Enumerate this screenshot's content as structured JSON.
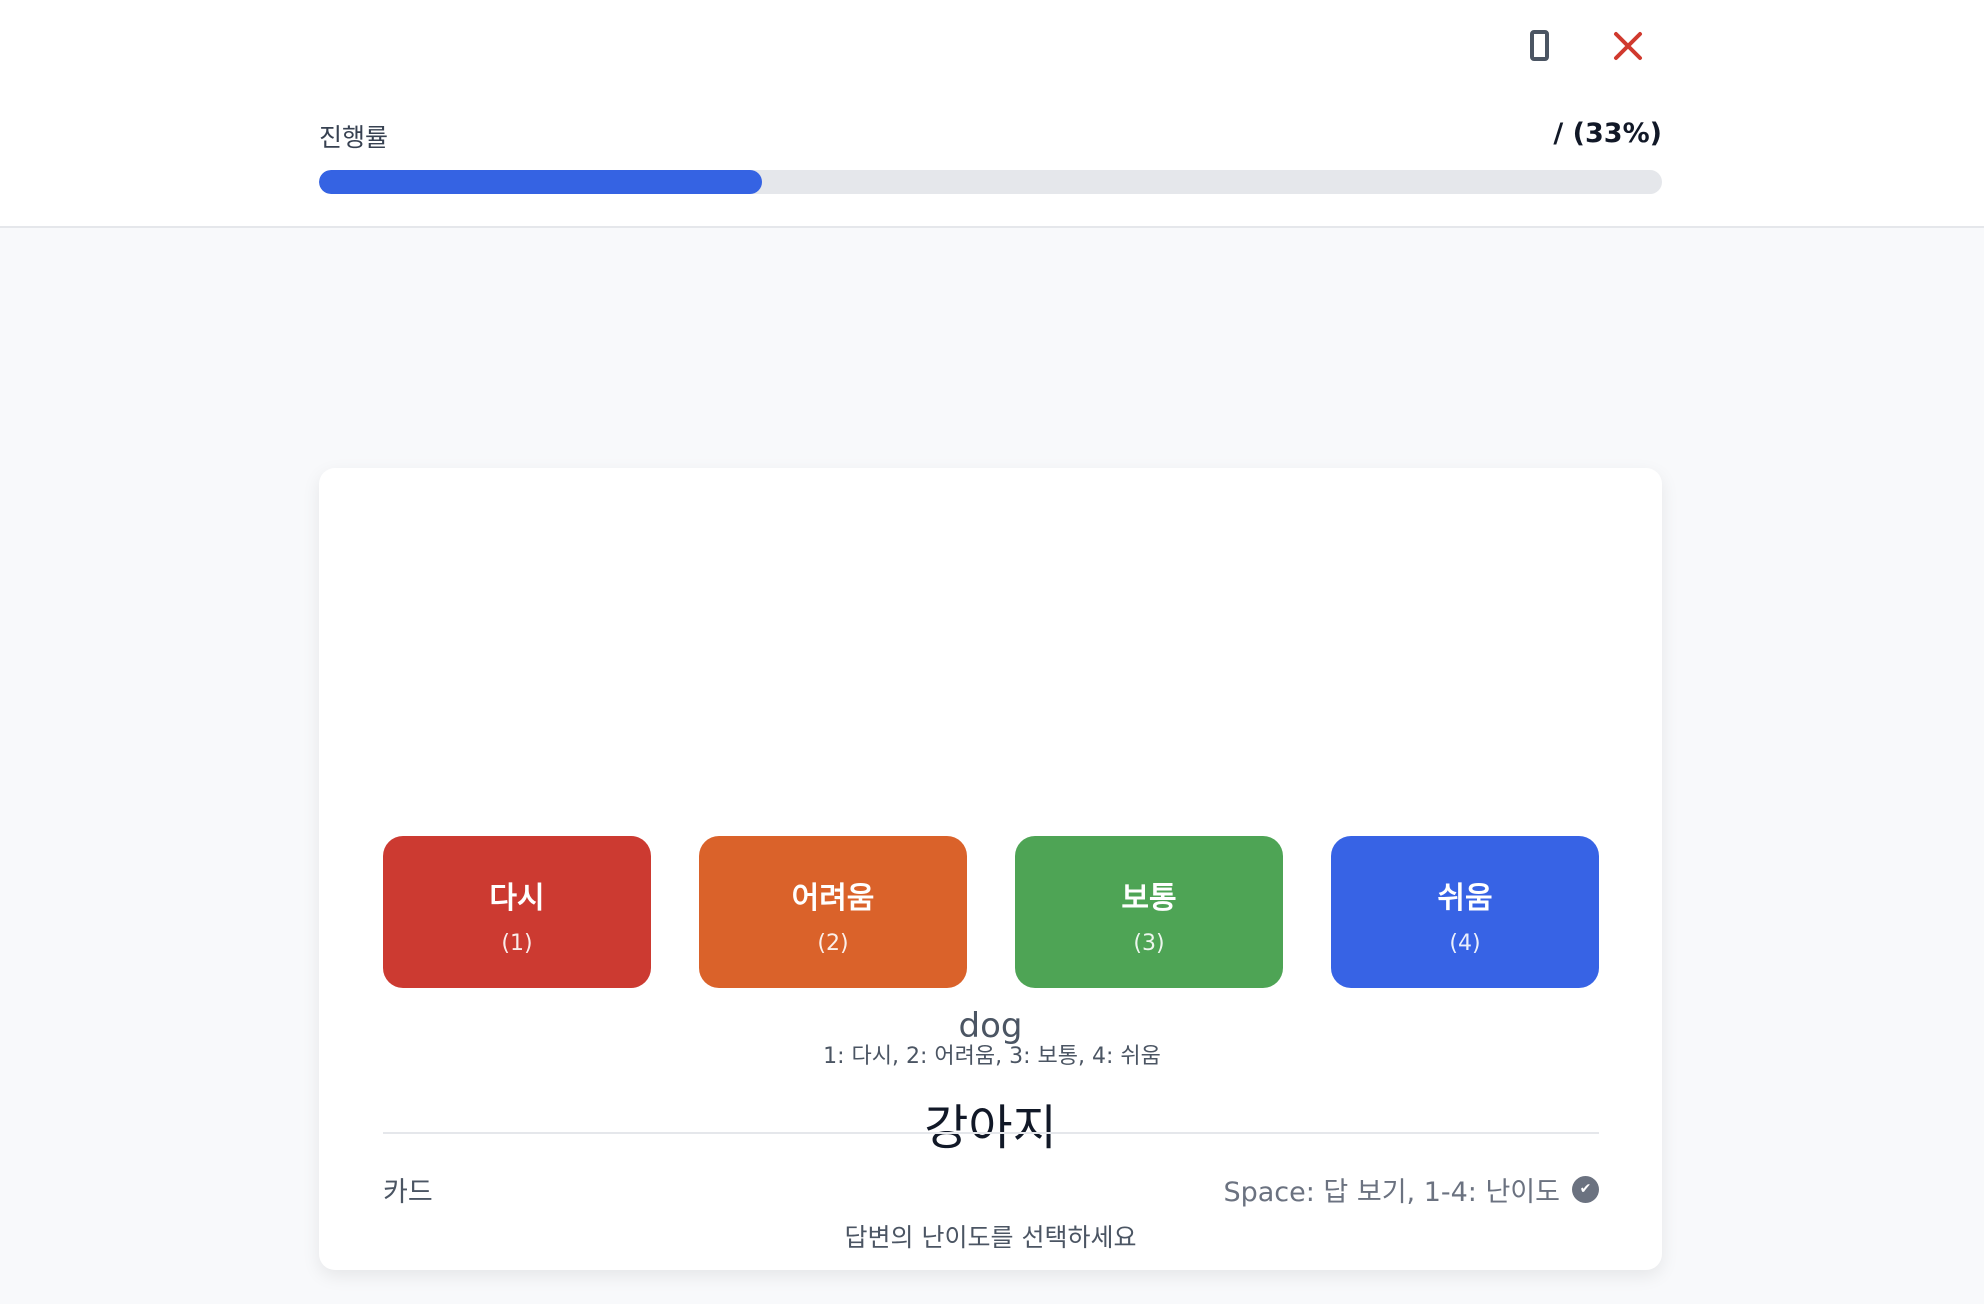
{
  "header": {
    "progress_label": "진행률",
    "progress_value": "/ (33%)",
    "progress_fraction": 0.33,
    "icons": [
      "mobile-icon",
      "close-icon"
    ]
  },
  "card": {
    "front": "dog",
    "back": "강아지",
    "prompt": "답변의 난이도를 선택하세요",
    "buttons": [
      {
        "label": "다시",
        "key": "(1)",
        "color": "#cc3a31"
      },
      {
        "label": "어려움",
        "key": "(2)",
        "color": "#da622a"
      },
      {
        "label": "보통",
        "key": "(3)",
        "color": "#4ea455"
      },
      {
        "label": "쉬움",
        "key": "(4)",
        "color": "#3763e5"
      }
    ],
    "hint": "1: 다시, 2: 어려움, 3: 보통, 4: 쉬움",
    "footer_left": "카드",
    "footer_right": "Space: 답 보기, 1-4: 난이도",
    "footer_icon": "check-circle-icon"
  }
}
